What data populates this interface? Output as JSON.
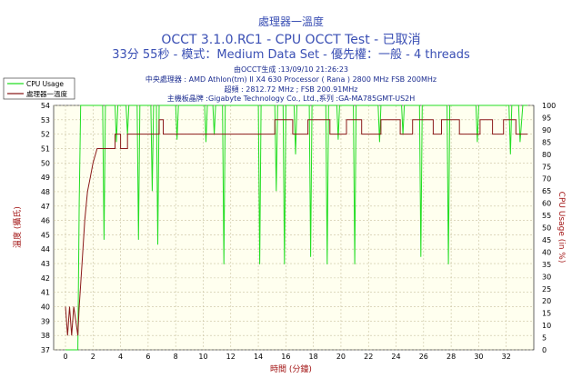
{
  "header": {
    "title": "處理器一溫度",
    "line2": "OCCT 3.1.0.RC1 - CPU OCCT Test - 已取消",
    "line3": "33分 55秒 - 模式：Medium Data Set - 優先權：一般 - 4 threads",
    "info": [
      "由OCCT生成 :13/09/10 21:26:23",
      "中央處理器 : AMD Athlon(tm) II X4 630 Processor ( Rana ) 2800 MHz FSB 200MHz",
      "超頻 : 2812.72 MHz ; FSB 200.91MHz",
      "主機板晶牌 :Gigabyte Technology Co., Ltd.,系列 :GA-MA785GMT-US2H"
    ]
  },
  "chart_data": {
    "type": "line",
    "xlabel": "時間 (分鐘)",
    "ylabel_left": "溫度 (攝氏)",
    "ylabel_right": "CPU Usage (in %)",
    "xlim": [
      0,
      34
    ],
    "ylim_left": [
      37,
      54
    ],
    "ylim_right": [
      0,
      100
    ],
    "x_ticks": [
      0,
      2,
      4,
      6,
      8,
      10,
      12,
      14,
      16,
      18,
      20,
      22,
      24,
      26,
      28,
      30,
      32
    ],
    "y_left_ticks": [
      37,
      38,
      39,
      40,
      41,
      42,
      43,
      44,
      45,
      46,
      47,
      48,
      49,
      50,
      51,
      52,
      53,
      54
    ],
    "y_right_ticks": [
      0,
      5,
      10,
      15,
      20,
      25,
      30,
      35,
      40,
      45,
      50,
      55,
      60,
      65,
      70,
      75,
      80,
      85,
      90,
      95,
      100
    ],
    "grid": true,
    "legend_position": "top-left",
    "series": [
      {
        "name": "CPU Usage",
        "axis": "right",
        "color": "#22dd22",
        "points": [
          [
            0.0,
            0
          ],
          [
            0.9,
            0
          ],
          [
            1.0,
            60
          ],
          [
            1.1,
            100
          ],
          [
            2.7,
            100
          ],
          [
            2.8,
            45
          ],
          [
            2.9,
            100
          ],
          [
            3.6,
            100
          ],
          [
            3.7,
            85
          ],
          [
            3.8,
            100
          ],
          [
            4.4,
            100
          ],
          [
            4.5,
            88
          ],
          [
            4.6,
            100
          ],
          [
            5.2,
            100
          ],
          [
            5.3,
            45
          ],
          [
            5.4,
            100
          ],
          [
            6.2,
            100
          ],
          [
            6.3,
            65
          ],
          [
            6.4,
            100
          ],
          [
            6.6,
            100
          ],
          [
            6.7,
            43
          ],
          [
            6.8,
            100
          ],
          [
            8.0,
            100
          ],
          [
            8.1,
            86
          ],
          [
            8.2,
            100
          ],
          [
            10.1,
            100
          ],
          [
            10.2,
            85
          ],
          [
            10.3,
            100
          ],
          [
            10.7,
            100
          ],
          [
            10.8,
            88
          ],
          [
            10.9,
            100
          ],
          [
            11.4,
            100
          ],
          [
            11.5,
            35
          ],
          [
            11.6,
            100
          ],
          [
            14.0,
            100
          ],
          [
            14.1,
            35
          ],
          [
            14.2,
            100
          ],
          [
            15.2,
            100
          ],
          [
            15.3,
            65
          ],
          [
            15.4,
            100
          ],
          [
            15.8,
            100
          ],
          [
            15.9,
            35
          ],
          [
            16.0,
            100
          ],
          [
            16.6,
            100
          ],
          [
            16.7,
            80
          ],
          [
            16.8,
            100
          ],
          [
            17.7,
            100
          ],
          [
            17.8,
            38
          ],
          [
            17.9,
            100
          ],
          [
            18.9,
            100
          ],
          [
            19.0,
            35
          ],
          [
            19.1,
            100
          ],
          [
            19.7,
            100
          ],
          [
            19.8,
            86
          ],
          [
            19.9,
            100
          ],
          [
            20.9,
            100
          ],
          [
            21.0,
            35
          ],
          [
            21.1,
            100
          ],
          [
            22.7,
            100
          ],
          [
            22.8,
            85
          ],
          [
            22.9,
            100
          ],
          [
            24.4,
            100
          ],
          [
            24.5,
            88
          ],
          [
            24.6,
            100
          ],
          [
            25.7,
            100
          ],
          [
            25.8,
            38
          ],
          [
            25.9,
            100
          ],
          [
            27.7,
            100
          ],
          [
            27.8,
            35
          ],
          [
            27.9,
            100
          ],
          [
            29.8,
            100
          ],
          [
            29.9,
            85
          ],
          [
            30.0,
            100
          ],
          [
            32.2,
            100
          ],
          [
            32.3,
            80
          ],
          [
            32.4,
            100
          ],
          [
            32.9,
            100
          ],
          [
            33.0,
            85
          ],
          [
            33.2,
            100
          ],
          [
            33.55,
            100
          ]
        ]
      },
      {
        "name": "處理器一溫度",
        "axis": "left",
        "color": "#8b1a1a",
        "points": [
          [
            0.0,
            40
          ],
          [
            0.15,
            38
          ],
          [
            0.3,
            40
          ],
          [
            0.45,
            38
          ],
          [
            0.6,
            40
          ],
          [
            0.75,
            39
          ],
          [
            0.9,
            38
          ],
          [
            1.0,
            40
          ],
          [
            1.2,
            43
          ],
          [
            1.4,
            46
          ],
          [
            1.6,
            48
          ],
          [
            1.8,
            49
          ],
          [
            2.0,
            50
          ],
          [
            2.3,
            51
          ],
          [
            3.6,
            51
          ],
          [
            3.6,
            52
          ],
          [
            4.0,
            52
          ],
          [
            4.0,
            51
          ],
          [
            4.5,
            51
          ],
          [
            4.5,
            52
          ],
          [
            6.8,
            52
          ],
          [
            6.8,
            53
          ],
          [
            7.1,
            53
          ],
          [
            7.1,
            52
          ],
          [
            15.2,
            52
          ],
          [
            15.2,
            53
          ],
          [
            16.5,
            53
          ],
          [
            16.5,
            52
          ],
          [
            17.6,
            52
          ],
          [
            17.6,
            53
          ],
          [
            19.2,
            53
          ],
          [
            19.2,
            52
          ],
          [
            20.4,
            52
          ],
          [
            20.4,
            53
          ],
          [
            21.5,
            53
          ],
          [
            21.5,
            52
          ],
          [
            22.9,
            52
          ],
          [
            22.9,
            53
          ],
          [
            24.3,
            53
          ],
          [
            24.3,
            52
          ],
          [
            25.2,
            52
          ],
          [
            25.2,
            53
          ],
          [
            26.7,
            53
          ],
          [
            26.7,
            52
          ],
          [
            27.3,
            52
          ],
          [
            27.3,
            53
          ],
          [
            28.6,
            53
          ],
          [
            28.6,
            52
          ],
          [
            30.1,
            52
          ],
          [
            30.1,
            53
          ],
          [
            31.0,
            53
          ],
          [
            31.0,
            52
          ],
          [
            31.8,
            52
          ],
          [
            31.8,
            53
          ],
          [
            32.7,
            53
          ],
          [
            32.7,
            52
          ],
          [
            33.55,
            52
          ]
        ]
      }
    ]
  },
  "colors": {
    "plot_background": "#ffffef",
    "grid": "#c9c2a0",
    "title": "#3a4fb4",
    "info_text": "#1a2b8f",
    "axis_label": "#a31515"
  }
}
